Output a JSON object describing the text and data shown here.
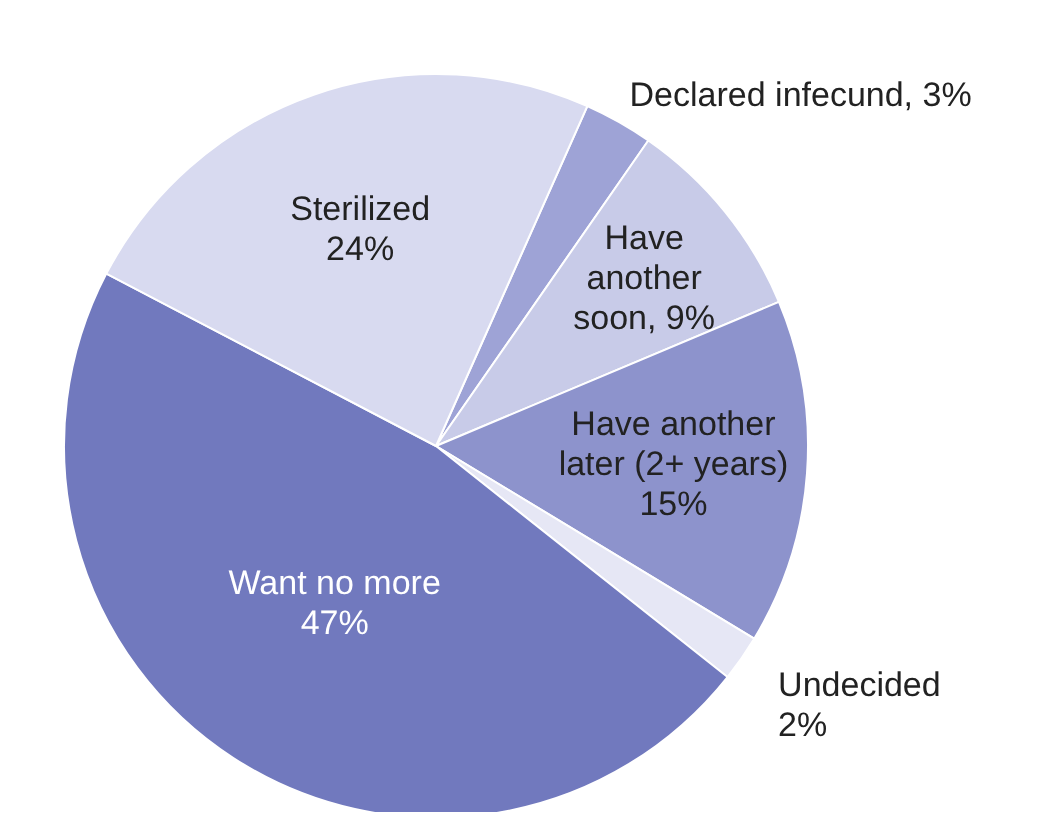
{
  "chart_data": {
    "type": "pie",
    "categories": [
      "Declared infecund",
      "Have another soon",
      "Have another later (2+ years)",
      "Undecided",
      "Want no more",
      "Sterilized"
    ],
    "values": [
      3,
      9,
      15,
      2,
      47,
      24
    ],
    "value_labels": [
      "3%",
      "9%",
      "15%",
      "2%",
      "47%",
      "24%"
    ],
    "colors": [
      "#9ea3d6",
      "#c8cbe8",
      "#8d93cc",
      "#e6e7f5",
      "#7179be",
      "#d8daf0"
    ],
    "data_labels": true,
    "legend": false
  }
}
